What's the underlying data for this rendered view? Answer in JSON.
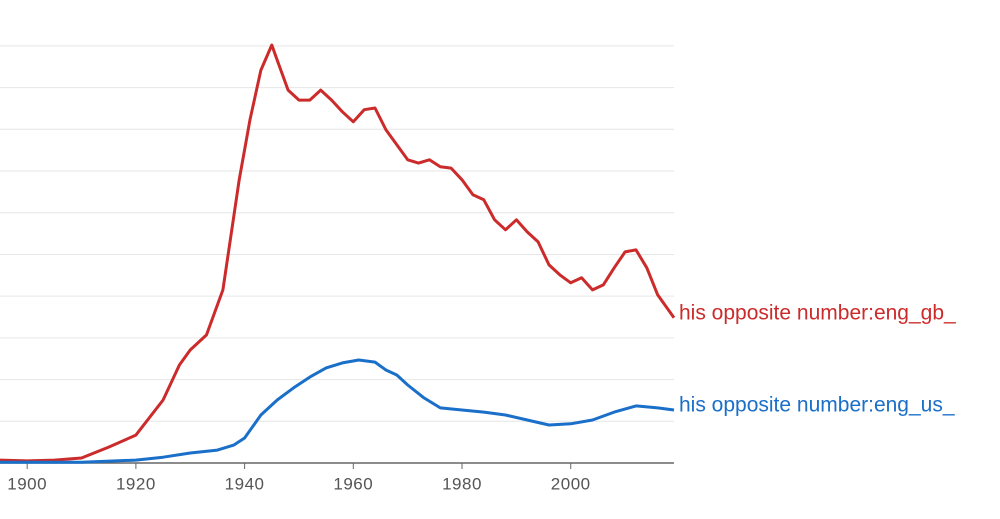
{
  "chart_data": {
    "type": "line",
    "xlim": [
      1895,
      2019
    ],
    "xticks": [
      1900,
      1920,
      1940,
      1960,
      1980,
      2000
    ],
    "ylim": [
      0,
      11.1
    ],
    "ygrid": [
      1,
      2,
      3,
      4,
      5,
      6,
      7,
      8,
      9,
      10
    ],
    "grid": true,
    "series": [
      {
        "name": "his opposite number:eng_gb_",
        "color": "#cc2b2b",
        "x": [
          1895,
          1900,
          1905,
          1910,
          1915,
          1920,
          1925,
          1928,
          1930,
          1933,
          1936,
          1939,
          1941,
          1943,
          1945,
          1946,
          1948,
          1950,
          1952,
          1954,
          1956,
          1958,
          1960,
          1962,
          1964,
          1966,
          1968,
          1970,
          1972,
          1974,
          1976,
          1978,
          1980,
          1982,
          1984,
          1986,
          1988,
          1990,
          1992,
          1994,
          1996,
          1998,
          2000,
          2002,
          2004,
          2006,
          2008,
          2010,
          2012,
          2014,
          2016,
          2019
        ],
        "values": [
          0.07,
          0.05,
          0.07,
          0.12,
          0.38,
          0.67,
          1.51,
          2.35,
          2.71,
          3.07,
          4.15,
          6.79,
          8.23,
          9.42,
          10.02,
          9.66,
          8.94,
          8.7,
          8.7,
          8.94,
          8.7,
          8.42,
          8.18,
          8.47,
          8.51,
          7.99,
          7.63,
          7.27,
          7.19,
          7.27,
          7.1,
          7.07,
          6.79,
          6.43,
          6.31,
          5.83,
          5.59,
          5.83,
          5.54,
          5.3,
          4.75,
          4.51,
          4.32,
          4.44,
          4.15,
          4.27,
          4.68,
          5.06,
          5.11,
          4.68,
          4.03,
          3.48
        ]
      },
      {
        "name": "his opposite number:eng_us_",
        "color": "#1a6fc9",
        "x": [
          1895,
          1910,
          1920,
          1925,
          1930,
          1935,
          1938,
          1940,
          1943,
          1946,
          1949,
          1952,
          1955,
          1958,
          1961,
          1964,
          1966,
          1968,
          1970,
          1973,
          1976,
          1980,
          1984,
          1988,
          1992,
          1996,
          2000,
          2004,
          2008,
          2012,
          2016,
          2019
        ],
        "values": [
          0.02,
          0.02,
          0.07,
          0.14,
          0.24,
          0.31,
          0.43,
          0.6,
          1.15,
          1.51,
          1.8,
          2.06,
          2.28,
          2.4,
          2.47,
          2.42,
          2.23,
          2.11,
          1.87,
          1.56,
          1.32,
          1.27,
          1.22,
          1.15,
          1.03,
          0.91,
          0.94,
          1.03,
          1.22,
          1.37,
          1.32,
          1.27
        ]
      }
    ]
  }
}
